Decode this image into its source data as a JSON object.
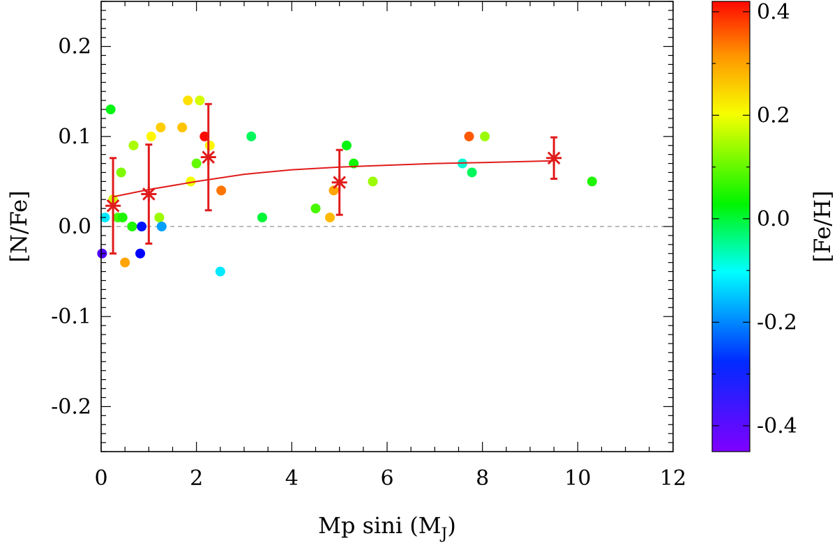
{
  "chart_data": {
    "type": "scatter",
    "xlabel": "Mp sini (M",
    "xlabel_sub": "J",
    "xlabel_close": ")",
    "ylabel": "[N/Fe]",
    "xlim": [
      0,
      12
    ],
    "ylim": [
      -0.25,
      0.25
    ],
    "x_ticks": [
      0,
      2,
      4,
      6,
      8,
      10,
      12
    ],
    "x_tick_labels": [
      "0",
      "2",
      "4",
      "6",
      "8",
      "10",
      "12"
    ],
    "y_ticks": [
      -0.2,
      -0.1,
      0.0,
      0.1,
      0.2
    ],
    "y_tick_labels": [
      "-0.2",
      "-0.1",
      "0.0",
      "0.1",
      "0.2"
    ],
    "reference_line_y": 0.0,
    "colorbar": {
      "label": "[Fe/H]",
      "range": [
        -0.45,
        0.42
      ],
      "ticks": [
        -0.4,
        -0.2,
        0.0,
        0.2,
        0.4
      ],
      "tick_labels": [
        "-0.4",
        "-0.2",
        "0.0",
        "0.2",
        "0.4"
      ]
    },
    "points": [
      {
        "x": 0.02,
        "y": -0.03,
        "feh": -0.4
      },
      {
        "x": 0.08,
        "y": 0.01,
        "feh": -0.12
      },
      {
        "x": 0.2,
        "y": 0.13,
        "feh": 0.02
      },
      {
        "x": 0.25,
        "y": 0.03,
        "feh": 0.18
      },
      {
        "x": 0.35,
        "y": 0.01,
        "feh": 0.08
      },
      {
        "x": 0.42,
        "y": 0.06,
        "feh": 0.12
      },
      {
        "x": 0.45,
        "y": 0.01,
        "feh": 0.05
      },
      {
        "x": 0.5,
        "y": -0.04,
        "feh": 0.3
      },
      {
        "x": 0.65,
        "y": 0.0,
        "feh": 0.05
      },
      {
        "x": 0.68,
        "y": 0.09,
        "feh": 0.15
      },
      {
        "x": 0.82,
        "y": -0.03,
        "feh": -0.32
      },
      {
        "x": 0.85,
        "y": 0.0,
        "feh": -0.3
      },
      {
        "x": 1.05,
        "y": 0.1,
        "feh": 0.22
      },
      {
        "x": 1.22,
        "y": 0.01,
        "feh": 0.14
      },
      {
        "x": 1.25,
        "y": 0.11,
        "feh": 0.26
      },
      {
        "x": 1.27,
        "y": 0.0,
        "feh": -0.18
      },
      {
        "x": 1.7,
        "y": 0.11,
        "feh": 0.27
      },
      {
        "x": 1.82,
        "y": 0.14,
        "feh": 0.24
      },
      {
        "x": 1.88,
        "y": 0.05,
        "feh": 0.2
      },
      {
        "x": 2.0,
        "y": 0.07,
        "feh": 0.1
      },
      {
        "x": 2.07,
        "y": 0.14,
        "feh": 0.18
      },
      {
        "x": 2.17,
        "y": 0.1,
        "feh": 0.42
      },
      {
        "x": 2.28,
        "y": 0.09,
        "feh": 0.22
      },
      {
        "x": 2.5,
        "y": -0.05,
        "feh": -0.12
      },
      {
        "x": 2.52,
        "y": 0.04,
        "feh": 0.34
      },
      {
        "x": 3.15,
        "y": 0.1,
        "feh": -0.02
      },
      {
        "x": 3.38,
        "y": 0.01,
        "feh": 0.0
      },
      {
        "x": 4.5,
        "y": 0.02,
        "feh": 0.08
      },
      {
        "x": 4.8,
        "y": 0.01,
        "feh": 0.28
      },
      {
        "x": 4.88,
        "y": 0.04,
        "feh": 0.3
      },
      {
        "x": 5.15,
        "y": 0.09,
        "feh": 0.02
      },
      {
        "x": 5.3,
        "y": 0.07,
        "feh": 0.04
      },
      {
        "x": 5.7,
        "y": 0.05,
        "feh": 0.14
      },
      {
        "x": 7.58,
        "y": 0.07,
        "feh": -0.08
      },
      {
        "x": 7.72,
        "y": 0.1,
        "feh": 0.36
      },
      {
        "x": 7.78,
        "y": 0.06,
        "feh": -0.02
      },
      {
        "x": 8.05,
        "y": 0.1,
        "feh": 0.14
      },
      {
        "x": 10.3,
        "y": 0.05,
        "feh": 0.05
      }
    ],
    "binned_means": [
      {
        "x": 0.25,
        "y": 0.023,
        "err": 0.053
      },
      {
        "x": 1.0,
        "y": 0.036,
        "err": 0.055
      },
      {
        "x": 2.25,
        "y": 0.077,
        "err": 0.059
      },
      {
        "x": 5.0,
        "y": 0.049,
        "err": 0.036
      },
      {
        "x": 9.5,
        "y": 0.076,
        "err": 0.023
      }
    ],
    "fit_curve": {
      "x": [
        0.25,
        1.0,
        2.0,
        3.0,
        4.0,
        5.0,
        6.0,
        7.0,
        8.0,
        9.5
      ],
      "y": [
        0.033,
        0.041,
        0.05,
        0.058,
        0.063,
        0.066,
        0.068,
        0.07,
        0.071,
        0.073
      ]
    },
    "marker_color": "#e11b1b"
  }
}
